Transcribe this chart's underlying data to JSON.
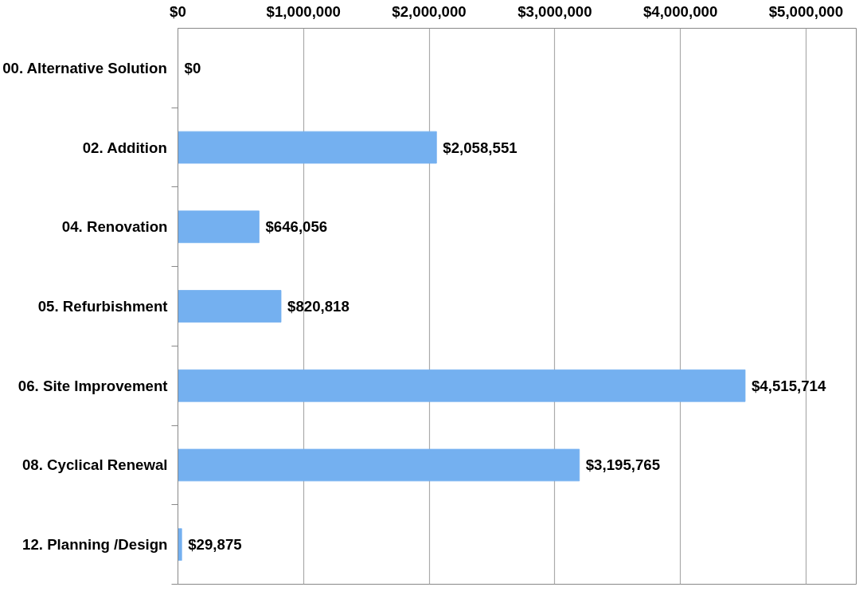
{
  "chart_data": {
    "type": "bar",
    "orientation": "horizontal",
    "categories": [
      "00. Alternative Solution",
      "02. Addition",
      "04. Renovation",
      "05. Refurbishment",
      "06. Site Improvement",
      "08. Cyclical Renewal",
      "12. Planning /Design"
    ],
    "values": [
      0,
      2058551,
      646056,
      820818,
      4515714,
      3195765,
      29875
    ],
    "value_labels": [
      "$0",
      "$2,058,551",
      "$646,056",
      "$820,818",
      "$4,515,714",
      "$3,195,765",
      "$29,875"
    ],
    "color": "#74b0f0",
    "xlim": [
      0,
      5400000
    ],
    "xticks": [
      {
        "value": 0,
        "label": "$0"
      },
      {
        "value": 1000000,
        "label": "$1,000,000"
      },
      {
        "value": 2000000,
        "label": "$2,000,000"
      },
      {
        "value": 3000000,
        "label": "$3,000,000"
      },
      {
        "value": 4000000,
        "label": "$4,000,000"
      },
      {
        "value": 5000000,
        "label": "$5,000,000"
      }
    ],
    "grid": "x"
  }
}
